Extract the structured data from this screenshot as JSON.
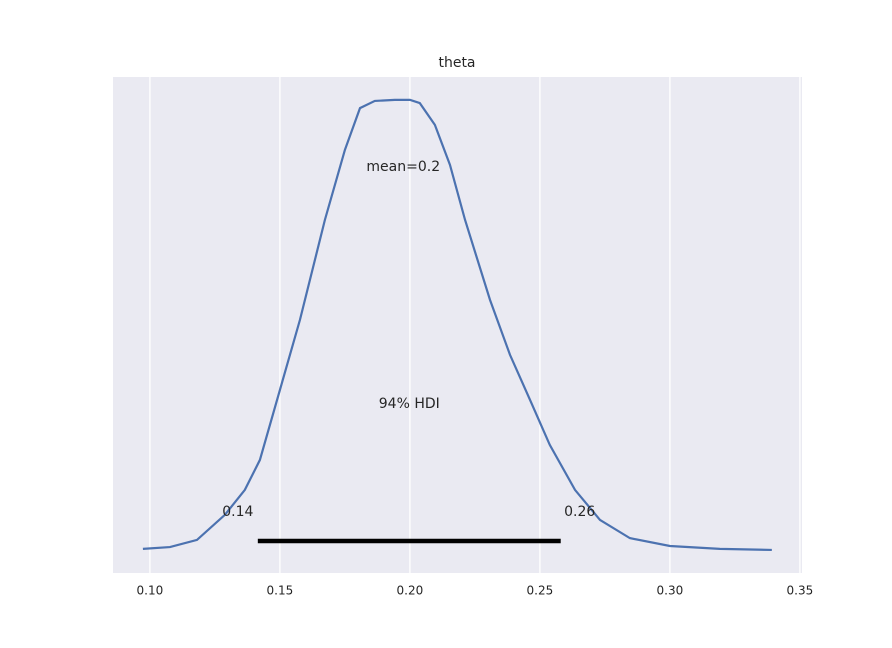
{
  "chart_data": {
    "type": "density",
    "title": "theta",
    "x": [
      0.0973,
      0.1077,
      0.1181,
      0.1288,
      0.1365,
      0.1423,
      0.15,
      0.1577,
      0.1673,
      0.175,
      0.1808,
      0.1865,
      0.1942,
      0.2,
      0.2038,
      0.2096,
      0.2154,
      0.2212,
      0.2308,
      0.2385,
      0.2462,
      0.2538,
      0.2635,
      0.2731,
      0.2846,
      0.3,
      0.3192,
      0.3392
    ],
    "values": [
      0.06,
      0.11,
      0.31,
      1.01,
      1.71,
      2.55,
      4.51,
      6.47,
      9.27,
      11.23,
      12.4,
      12.6,
      12.63,
      12.63,
      12.54,
      11.93,
      10.81,
      9.27,
      7.03,
      5.49,
      4.23,
      2.97,
      1.71,
      0.87,
      0.36,
      0.14,
      0.06,
      0.03
    ],
    "color": "#4c72b0",
    "xlim": [
      0.0858,
      0.3508
    ],
    "ylim": [
      -0.616,
      13.27
    ],
    "xticks": [
      {
        "value": 0.1,
        "label": "0.10"
      },
      {
        "value": 0.15,
        "label": "0.15"
      },
      {
        "value": 0.2,
        "label": "0.20"
      },
      {
        "value": 0.25,
        "label": "0.25"
      },
      {
        "value": 0.3,
        "label": "0.30"
      },
      {
        "value": 0.35,
        "label": "0.35"
      }
    ],
    "grid": true,
    "mean_label": "mean=0.2",
    "hdi": {
      "label": "94% HDI",
      "values": [
        0.1415,
        0.258
      ],
      "value_labels": [
        "0.14",
        "0.26"
      ]
    }
  }
}
